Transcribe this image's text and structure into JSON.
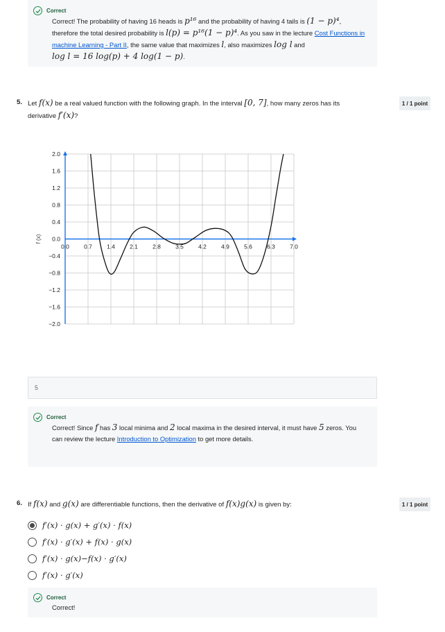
{
  "feedback_top": {
    "title": "Correct",
    "line1_a": "Correct! The probability of having 16 heads is ",
    "line1_m1": "p¹⁶",
    "line1_b": " and the probability of having 4 tails is ",
    "line1_m2": "(1 − p)⁴",
    "line1_c": ",",
    "line2_a": "therefore the total desired probability is ",
    "line2_m": "l(p) = p¹⁶(1 − p)⁴",
    "line2_b": ". As you saw in the lecture ",
    "link": "Cost Functions in machine Learning - Part II",
    "line3_a": ", the same value that maximizes ",
    "line3_m1": "l",
    "line3_b": ", also maximizes ",
    "line3_m2": "log l",
    "line3_c": " and",
    "line4_m": "log l = 16 log(p) + 4 log(1 − p)",
    "line4_c": "."
  },
  "q5": {
    "number": "5.",
    "text_a": "Let ",
    "text_m1": "f(x)",
    "text_b": " be a real valued function with the following graph. In the interval ",
    "text_m2": "[0, 7]",
    "text_c": ", how many zeros has its",
    "text_d": "derivative ",
    "text_m3": "f′(x)",
    "text_e": "?",
    "points": "1 / 1 point",
    "answer": "5",
    "feedback_title": "Correct",
    "fb_a": "Correct! Since ",
    "fb_m1": "f",
    "fb_b": " has ",
    "fb_m2": "3",
    "fb_c": " local minima and ",
    "fb_m3": "2",
    "fb_d": " local maxima in the desired interval, it must have ",
    "fb_m4": "5",
    "fb_e": " zeros. You",
    "fb_f": "can review the lecture ",
    "fb_link": "Introduction to Optimization",
    "fb_g": " to get more details."
  },
  "chart_data": {
    "type": "line",
    "xlabel": "",
    "ylabel": "f (x)",
    "xlim": [
      0,
      7
    ],
    "ylim": [
      -2,
      2
    ],
    "x_ticks": [
      "0.0",
      "0.7",
      "1.4",
      "2.1",
      "2.8",
      "3.5",
      "4.2",
      "4.9",
      "5.6",
      "6.3",
      "7.0"
    ],
    "y_ticks": [
      "2.0",
      "1.6",
      "1.2",
      "0.8",
      "0.4",
      "0.0",
      "−0.4",
      "−0.8",
      "−1.2",
      "−1.6",
      "−2.0"
    ],
    "grid": true,
    "series": [
      {
        "values_x": [
          0.78,
          0.9,
          1.05,
          1.2,
          1.35,
          1.5,
          1.7,
          1.9,
          2.1,
          2.4,
          2.7,
          3.0,
          3.3,
          3.5,
          3.7,
          4.0,
          4.3,
          4.6,
          4.9,
          5.1,
          5.3,
          5.5,
          5.7,
          5.9,
          6.1,
          6.3,
          6.45,
          6.58,
          6.68
        ],
        "values_y": [
          2.0,
          1.0,
          0.0,
          -0.5,
          -0.8,
          -0.78,
          -0.45,
          -0.1,
          0.16,
          0.28,
          0.19,
          0.02,
          -0.1,
          -0.12,
          -0.1,
          0.05,
          0.2,
          0.25,
          0.2,
          0.05,
          -0.3,
          -0.7,
          -0.82,
          -0.75,
          -0.35,
          0.3,
          1.0,
          1.6,
          2.0
        ]
      }
    ]
  },
  "q6": {
    "number": "6.",
    "text_a": "If ",
    "text_m1": "f(x)",
    "text_b": " and ",
    "text_m2": "g(x)",
    "text_c": " are differentiable functions, then the derivative of ",
    "text_m3": "f(x)g(x)",
    "text_d": " is given by:",
    "points": "1 / 1 point",
    "options": [
      "f′(x) · g(x) + g′(x) · f(x)",
      "f′(x) · g′(x) + f(x) · g(x)",
      "f′(x) · g(x)−f(x) · g′(x)",
      "f′(x) · g′(x)"
    ],
    "feedback_title": "Correct",
    "feedback_text": "Correct!"
  }
}
